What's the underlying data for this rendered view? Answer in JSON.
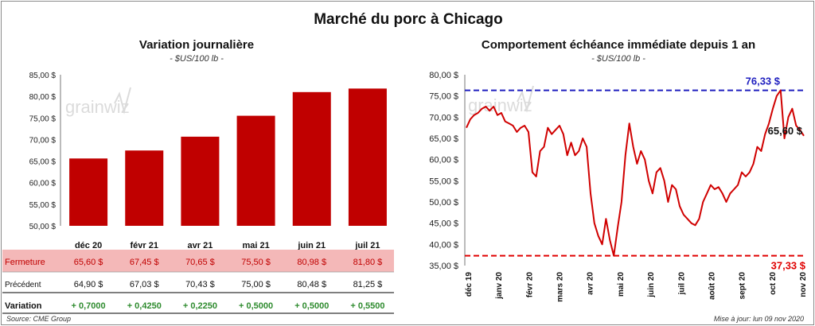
{
  "title": "Marché du porc à Chicago",
  "left_panel": {
    "title": "Variation  journalière",
    "subtitle": "- $US/100 lb -",
    "rows": [
      {
        "label": "Fermeture",
        "values": [
          "65,60  $",
          "67,45  $",
          "70,65  $",
          "75,50  $",
          "80,98  $",
          "81,80  $"
        ]
      },
      {
        "label": "Précédent",
        "values": [
          "64,90  $",
          "67,03  $",
          "70,43  $",
          "75,00  $",
          "80,48  $",
          "81,25  $"
        ]
      },
      {
        "label": "Variation",
        "values": [
          "+ 0,7000",
          "+ 0,4250",
          "+ 0,2250",
          "+ 0,5000",
          "+ 0,5000",
          "+ 0,5500"
        ]
      }
    ]
  },
  "right_panel": {
    "title": "Comportement  échéance immédiate depuis 1 an",
    "subtitle": "- $US/100 lb -",
    "max_label": "76,33 $",
    "min_label": "37,33 $",
    "last_label": "65,60 $"
  },
  "watermark": "grainwiz",
  "footer": {
    "source": "Source: CME Group",
    "updated": "Mise à jour: lun 09 nov 2020"
  },
  "colors": {
    "bar": "#c00000",
    "line": "#d00000",
    "max_line": "#1f1fbf",
    "min_line": "#e00000",
    "fermeture_row_bg": "#f4b8b8",
    "positive": "#2e8b2e"
  },
  "chart_data": [
    {
      "type": "bar",
      "categories": [
        "déc 20",
        "févr 21",
        "avr 21",
        "mai 21",
        "juin 21",
        "juil 21"
      ],
      "values": [
        65.6,
        67.45,
        70.65,
        75.5,
        80.98,
        81.8
      ],
      "ylim": [
        50,
        85
      ],
      "yticks": [
        "50,00 $",
        "55,00 $",
        "60,00 $",
        "65,00 $",
        "70,00 $",
        "75,00 $",
        "80,00 $",
        "85,00 $"
      ],
      "grid": false
    },
    {
      "type": "line",
      "x_labels": [
        "déc 19",
        "janv 20",
        "févr 20",
        "mars 20",
        "avr 20",
        "mai 20",
        "juin 20",
        "juil 20",
        "août 20",
        "sept 20",
        "oct 20",
        "nov 20"
      ],
      "ylim": [
        35,
        80
      ],
      "yticks": [
        "35,00 $",
        "40,00 $",
        "45,00 $",
        "50,00 $",
        "55,00 $",
        "60,00 $",
        "65,00 $",
        "70,00 $",
        "75,00 $",
        "80,00 $"
      ],
      "max": 76.33,
      "min": 37.33,
      "last": 65.6,
      "grid": false,
      "values": [
        67.5,
        69.5,
        70.5,
        71.0,
        72.0,
        72.5,
        71.5,
        72.5,
        70.5,
        71.0,
        69.0,
        68.5,
        68.0,
        66.5,
        67.5,
        68.0,
        66.5,
        57.0,
        56.0,
        62.0,
        63.0,
        67.5,
        66.0,
        67.0,
        68.0,
        66.0,
        61.0,
        64.0,
        61.0,
        62.0,
        65.0,
        63.0,
        52.0,
        45.0,
        42.0,
        40.0,
        46.0,
        41.0,
        37.33,
        44.0,
        50.0,
        61.0,
        68.5,
        63.0,
        59.0,
        62.0,
        60.0,
        55.0,
        52.0,
        57.0,
        58.0,
        55.0,
        50.0,
        54.0,
        53.0,
        49.0,
        47.0,
        46.0,
        45.0,
        44.5,
        46.0,
        50.0,
        52.0,
        54.0,
        53.0,
        53.5,
        52.0,
        50.0,
        52.0,
        53.0,
        54.0,
        57.0,
        56.0,
        57.0,
        59.0,
        63.0,
        62.0,
        66.0,
        68.5,
        72.0,
        75.0,
        76.33,
        65.0,
        70.0,
        72.0,
        68.0,
        67.0,
        65.6
      ]
    }
  ]
}
